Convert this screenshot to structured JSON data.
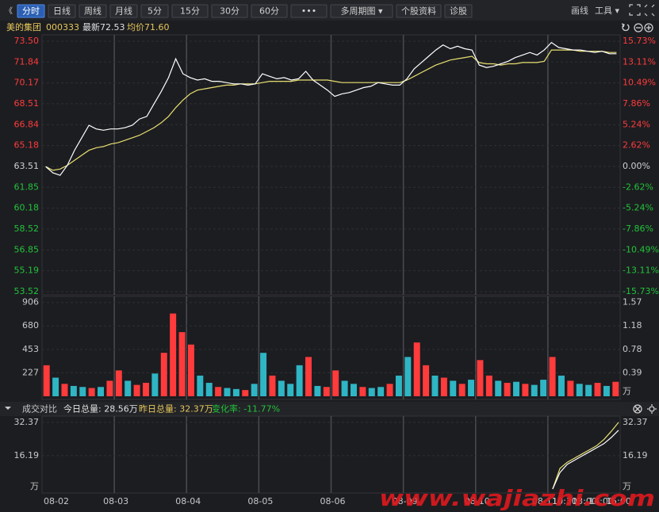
{
  "toolbar": {
    "back": "《",
    "buttons": [
      "分时",
      "日线",
      "周线",
      "月线",
      "5分",
      "15分",
      "30分",
      "60分",
      "•••",
      "多周期图 ▾",
      "个股资料",
      "诊股"
    ],
    "active": 0,
    "right": [
      "画线",
      "工具 ▾"
    ]
  },
  "info": {
    "name": "美的集团",
    "code": "000333",
    "latest": "最新72.53",
    "average": "均价71.60"
  },
  "chart_data": [
    {
      "type": "line",
      "ylim": [
        53.52,
        73.5
      ],
      "yticks": [
        {
          "value": 73.5,
          "label": "73.50"
        },
        {
          "value": 71.84,
          "label": "71.84"
        },
        {
          "value": 70.17,
          "label": "70.17"
        },
        {
          "value": 68.51,
          "label": "68.51"
        },
        {
          "value": 66.84,
          "label": "66.84"
        },
        {
          "value": 65.18,
          "label": "65.18"
        },
        {
          "value": 63.51,
          "label": "63.51"
        },
        {
          "value": 61.85,
          "label": "61.85"
        },
        {
          "value": 60.18,
          "label": "60.18"
        },
        {
          "value": 58.52,
          "label": "58.52"
        },
        {
          "value": 56.85,
          "label": "56.85"
        },
        {
          "value": 55.19,
          "label": "55.19"
        },
        {
          "value": 53.52,
          "label": "53.52"
        }
      ],
      "y2lim": [
        -15.73,
        15.73
      ],
      "y2ticks": [
        {
          "value": 15.73,
          "label": "15.73%"
        },
        {
          "value": 13.11,
          "label": "13.11%"
        },
        {
          "value": 10.49,
          "label": "10.49%"
        },
        {
          "value": 7.86,
          "label": "7.86%"
        },
        {
          "value": 5.24,
          "label": "5.24%"
        },
        {
          "value": 2.62,
          "label": "2.62%"
        },
        {
          "value": 0,
          "label": "0.00%"
        },
        {
          "value": -2.62,
          "label": "-2.62%"
        },
        {
          "value": -5.24,
          "label": "-5.24%"
        },
        {
          "value": -7.86,
          "label": "-7.86%"
        },
        {
          "value": -10.49,
          "label": "-10.49%"
        },
        {
          "value": -13.11,
          "label": "-13.11%"
        },
        {
          "value": -15.73,
          "label": "-15.73%"
        }
      ],
      "series": [
        {
          "color": "#ffffff",
          "values": [
            63.5,
            63.0,
            62.8,
            63.6,
            64.8,
            65.8,
            66.8,
            66.5,
            66.4,
            66.5,
            66.5,
            66.6,
            66.8,
            67.3,
            67.5,
            68.5,
            69.5,
            70.6,
            72.1,
            70.9,
            70.6,
            70.4,
            70.5,
            70.3,
            70.3,
            70.2,
            70.1,
            70.1,
            70.0,
            70.1,
            70.9,
            70.7,
            70.5,
            70.6,
            70.4,
            70.5,
            71.1,
            70.4,
            70.0,
            69.6,
            69.1,
            69.3,
            69.4,
            69.6,
            69.8,
            69.9,
            70.2,
            70.1,
            70.0,
            70.0,
            70.5,
            71.3,
            71.8,
            72.3,
            72.8,
            73.2,
            72.9,
            73.1,
            72.9,
            72.8,
            71.6,
            71.4,
            71.5,
            71.7,
            71.9,
            72.2,
            72.4,
            72.6,
            72.4,
            72.8,
            73.4,
            73.0,
            72.9,
            72.8,
            72.8,
            72.7,
            72.6,
            72.7,
            72.5,
            72.5
          ]
        },
        {
          "color": "#e8e070",
          "values": [
            63.5,
            63.2,
            63.3,
            63.6,
            64.0,
            64.4,
            64.8,
            65.0,
            65.1,
            65.3,
            65.4,
            65.6,
            65.8,
            66.0,
            66.3,
            66.6,
            67.0,
            67.5,
            68.2,
            68.8,
            69.3,
            69.6,
            69.7,
            69.8,
            69.9,
            70.0,
            70.0,
            70.1,
            70.1,
            70.1,
            70.2,
            70.3,
            70.3,
            70.3,
            70.3,
            70.4,
            70.4,
            70.4,
            70.4,
            70.4,
            70.3,
            70.2,
            70.2,
            70.2,
            70.2,
            70.2,
            70.2,
            70.2,
            70.2,
            70.2,
            70.4,
            70.7,
            71.0,
            71.3,
            71.6,
            71.8,
            72.0,
            72.1,
            72.2,
            72.3,
            71.8,
            71.7,
            71.7,
            71.6,
            71.7,
            71.7,
            71.8,
            71.8,
            71.8,
            71.9,
            72.8,
            72.8,
            72.8,
            72.8,
            72.7,
            72.7,
            72.7,
            72.7,
            72.6,
            72.6
          ]
        }
      ]
    },
    {
      "type": "bar",
      "ylim": [
        0,
        950
      ],
      "yticks": [
        906,
        680,
        453,
        227
      ],
      "y2lim": [
        0,
        1.646
      ],
      "y2ticks": [
        1.57,
        1.18,
        0.78,
        0.39
      ],
      "unit": "万",
      "values": [
        300,
        180,
        120,
        100,
        90,
        80,
        90,
        150,
        250,
        150,
        110,
        130,
        220,
        420,
        800,
        620,
        500,
        200,
        130,
        90,
        80,
        70,
        60,
        120,
        420,
        200,
        150,
        120,
        300,
        380,
        100,
        90,
        250,
        150,
        120,
        90,
        80,
        90,
        120,
        200,
        380,
        520,
        300,
        200,
        180,
        150,
        120,
        160,
        350,
        200,
        150,
        130,
        140,
        120,
        110,
        160,
        380,
        200,
        150,
        120,
        110,
        130,
        100,
        140
      ],
      "colors": [
        "#ff3b3b",
        "#2fb5c4",
        "#ff3b3b",
        "#2fb5c4",
        "#2fb5c4",
        "#ff3b3b",
        "#2fb5c4",
        "#ff3b3b",
        "#ff3b3b",
        "#2fb5c4",
        "#ff3b3b",
        "#ff3b3b",
        "#2fb5c4",
        "#ff3b3b",
        "#ff3b3b",
        "#ff3b3b",
        "#ff3b3b",
        "#2fb5c4",
        "#2fb5c4",
        "#ff3b3b",
        "#2fb5c4",
        "#2fb5c4",
        "#ff3b3b",
        "#2fb5c4",
        "#2fb5c4",
        "#ff3b3b",
        "#2fb5c4",
        "#2fb5c4",
        "#2fb5c4",
        "#ff3b3b",
        "#2fb5c4",
        "#ff3b3b",
        "#ff3b3b",
        "#2fb5c4",
        "#2fb5c4",
        "#ff3b3b",
        "#2fb5c4",
        "#2fb5c4",
        "#ff3b3b",
        "#2fb5c4",
        "#2fb5c4",
        "#ff3b3b",
        "#ff3b3b",
        "#2fb5c4",
        "#ff3b3b",
        "#2fb5c4",
        "#ff3b3b",
        "#2fb5c4",
        "#ff3b3b",
        "#ff3b3b",
        "#2fb5c4",
        "#ff3b3b",
        "#2fb5c4",
        "#ff3b3b",
        "#2fb5c4",
        "#2fb5c4",
        "#ff3b3b",
        "#2fb5c4",
        "#ff3b3b",
        "#2fb5c4",
        "#2fb5c4",
        "#ff3b3b",
        "#2fb5c4",
        "#ff3b3b"
      ]
    },
    {
      "type": "line",
      "header": [
        "成交对比",
        "今日总量: 28.56万",
        "昨日总量: 32.37万",
        "变化率: -11.77%"
      ],
      "ylim": [
        0,
        35.4
      ],
      "yticks": [
        32.37,
        16.19
      ],
      "unit": "万",
      "series": [
        {
          "color": "#ffffff",
          "values": [
            0,
            8,
            12,
            14,
            16,
            18,
            20,
            22,
            25,
            28.56
          ]
        },
        {
          "color": "#e8e070",
          "values": [
            0,
            10,
            13,
            15,
            17,
            19,
            21,
            24,
            28,
            32.37
          ]
        }
      ]
    }
  ],
  "time_axis": [
    "08-02",
    "08-03",
    "08-04",
    "08-05",
    "08-06",
    "08-09",
    "08-10",
    "08-11",
    "10:30",
    "13:00",
    "14:00",
    "15:00"
  ],
  "watermark": "www.wajiazhi.com"
}
